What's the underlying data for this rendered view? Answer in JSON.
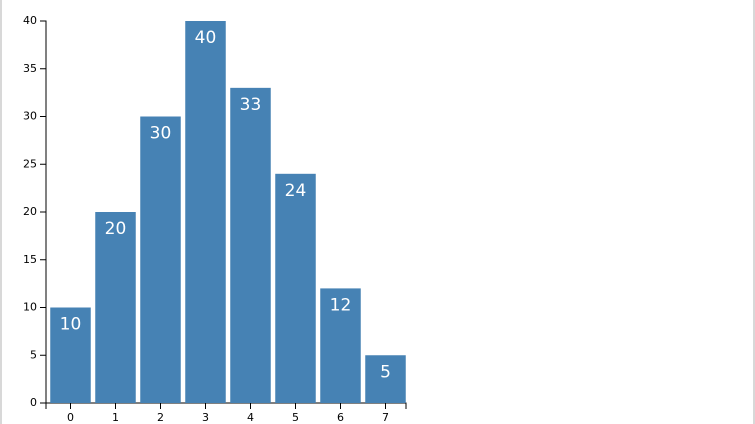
{
  "chart_data": {
    "type": "bar",
    "categories": [
      "0",
      "1",
      "2",
      "3",
      "4",
      "5",
      "6",
      "7"
    ],
    "values": [
      10,
      20,
      30,
      40,
      33,
      24,
      12,
      5
    ],
    "color": "#4682b4",
    "ylim": [
      0,
      40
    ],
    "yticks": [
      0,
      5,
      10,
      15,
      20,
      25,
      30,
      35,
      40
    ]
  }
}
